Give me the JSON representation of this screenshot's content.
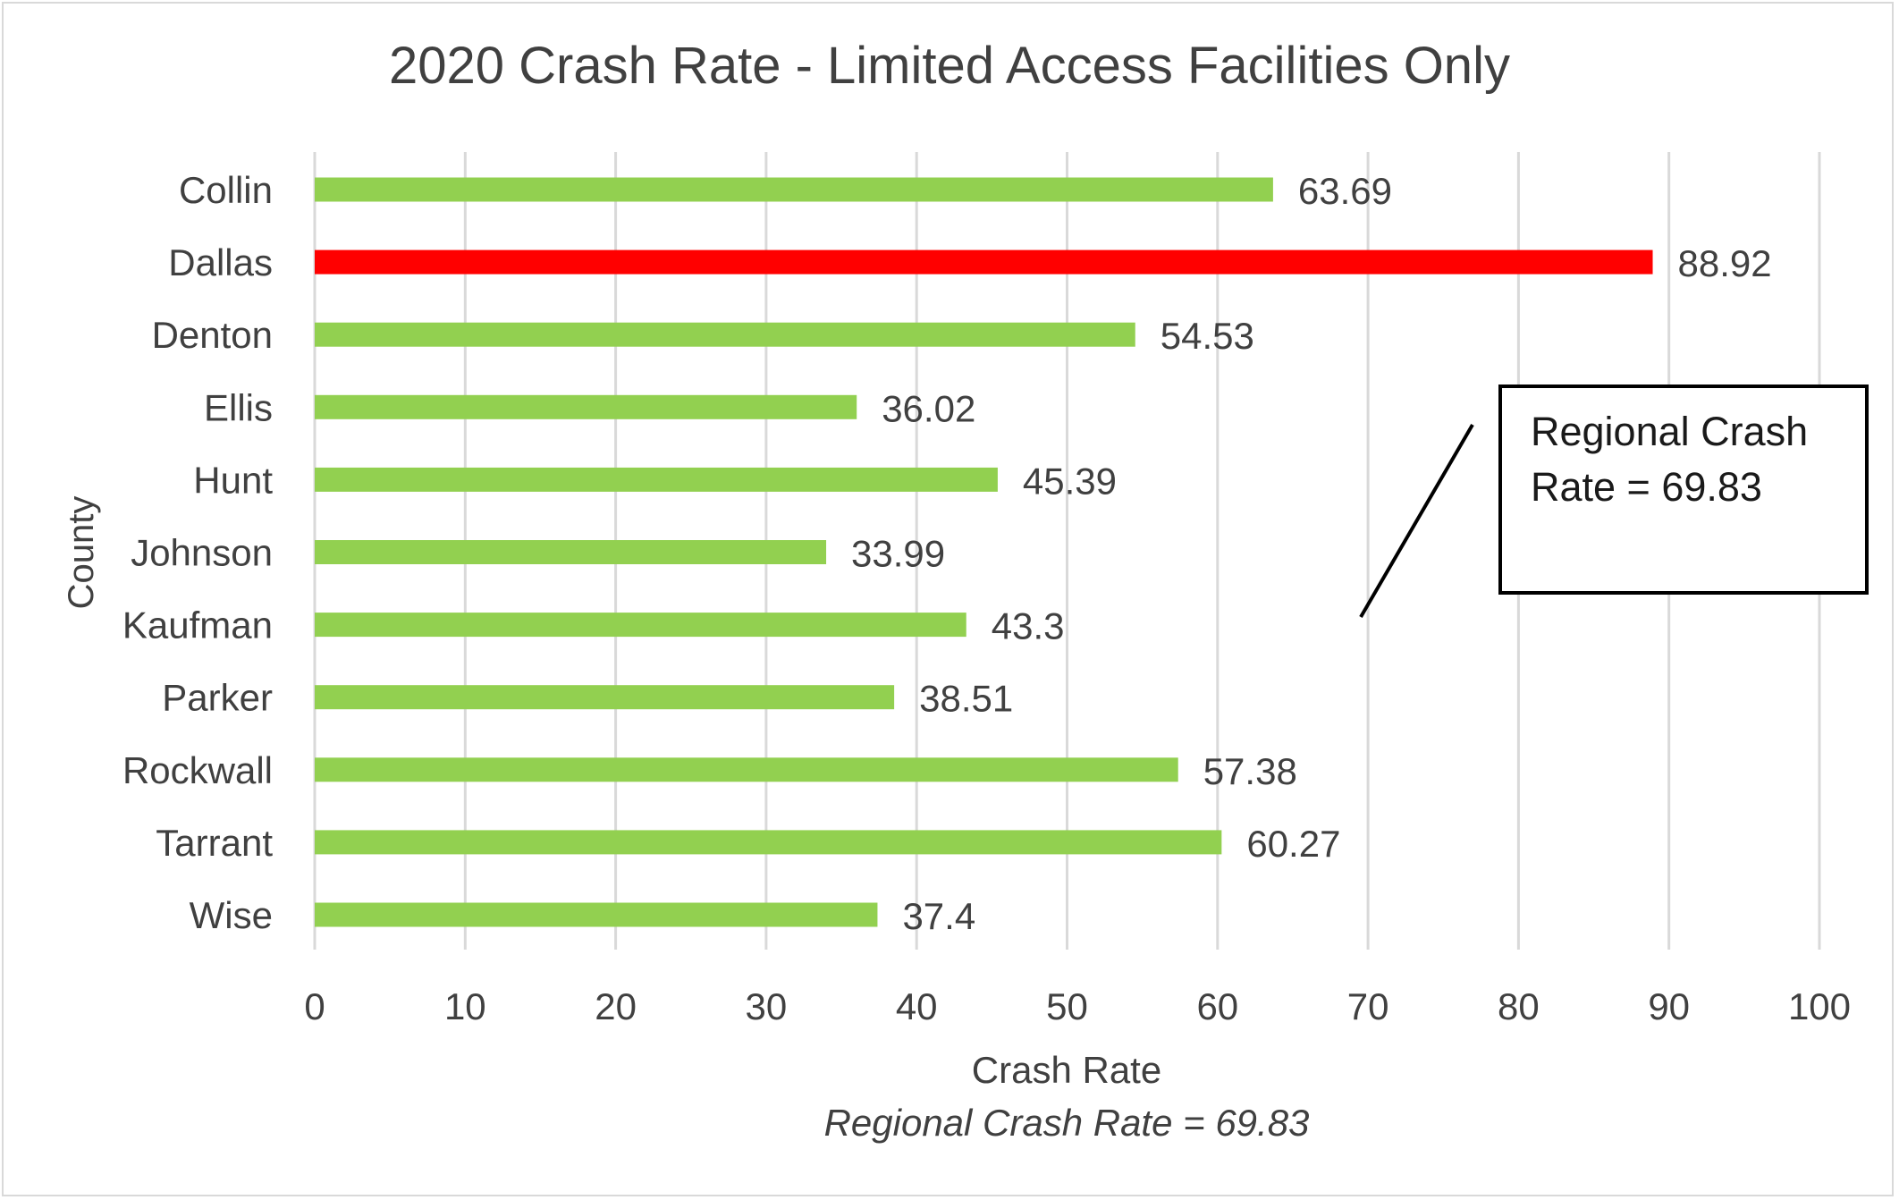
{
  "chart_data": {
    "type": "bar",
    "orientation": "horizontal",
    "title": "2020 Crash Rate - Limited Access Facilities Only",
    "xlabel": "Crash Rate",
    "ylabel": "County",
    "subtitle_note": "Regional Crash Rate = 69.83",
    "categories": [
      "Collin",
      "Dallas",
      "Denton",
      "Ellis",
      "Hunt",
      "Johnson",
      "Kaufman",
      "Parker",
      "Rockwall",
      "Tarrant",
      "Wise"
    ],
    "values": [
      63.69,
      88.92,
      54.53,
      36.02,
      45.39,
      33.99,
      43.3,
      38.51,
      57.38,
      60.27,
      37.4
    ],
    "value_labels": [
      "63.69",
      "88.92",
      "54.53",
      "36.02",
      "45.39",
      "33.99",
      "43.3",
      "38.51",
      "57.38",
      "60.27",
      "37.4"
    ],
    "xlim": [
      0,
      100
    ],
    "xticks": [
      0,
      10,
      20,
      30,
      40,
      50,
      60,
      70,
      80,
      90,
      100
    ],
    "grid": "vertical",
    "colors": {
      "default_bar": "#92d050",
      "highlight_bar": "#ff0000",
      "gridline": "#d9d9d9",
      "text": "#404040"
    },
    "highlight_index": 1,
    "annotation": {
      "text": "Regional Crash Rate = 69.83",
      "line1": "Regional Crash",
      "line2": "Rate = 69.83"
    }
  }
}
